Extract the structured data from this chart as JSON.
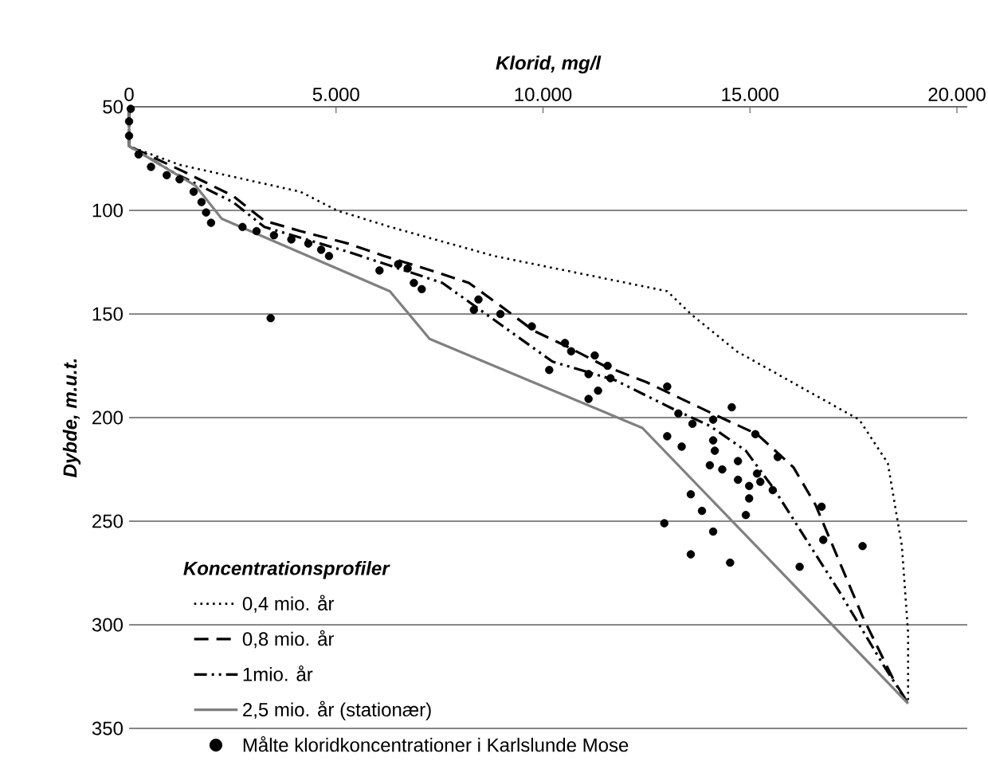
{
  "chart_data": {
    "type": "line",
    "xlabel": "Klorid, mg/l",
    "ylabel": "Dybde, m.u.t.",
    "legend_title": "Koncentrationsprofiler",
    "xlim": [
      0,
      20250
    ],
    "ylim": [
      350,
      50
    ],
    "xticks": [
      {
        "value": 0,
        "label": "0"
      },
      {
        "value": 5000,
        "label": "5.000"
      },
      {
        "value": 10000,
        "label": "10.000"
      },
      {
        "value": 15000,
        "label": "15.000"
      },
      {
        "value": 20000,
        "label": "20.000"
      }
    ],
    "yticks": [
      50,
      100,
      150,
      200,
      250,
      300,
      350
    ],
    "grid": "y",
    "legend": "bottom left",
    "series": [
      {
        "name": "0,4 mio. år",
        "color": "#000000",
        "line_style": "dotted",
        "x": [
          0,
          0,
          1220,
          4140,
          5020,
          6310,
          8820,
          12020,
          13000,
          13570,
          14680,
          16200,
          17640,
          18330,
          18670,
          18820,
          18820
        ],
        "values": [
          50,
          69,
          78,
          91,
          100,
          108,
          122,
          135,
          139,
          150,
          168,
          185,
          201,
          222,
          262,
          304,
          338
        ]
      },
      {
        "name": "0,8 mio. år",
        "color": "#000000",
        "line_style": "dashed",
        "x": [
          0,
          0,
          1290,
          2510,
          3270,
          4140,
          5290,
          6160,
          7300,
          8210,
          8970,
          9770,
          10610,
          11480,
          12510,
          13350,
          14300,
          15170,
          16050,
          16580,
          17720,
          18480,
          18820
        ],
        "values": [
          50,
          69,
          81,
          93,
          105,
          110,
          116,
          122,
          129,
          135,
          146,
          158,
          166,
          175,
          183,
          191,
          200,
          208,
          224,
          242,
          296,
          327,
          338
        ]
      },
      {
        "name": "1mio. år",
        "color": "#000000",
        "line_style": "dashdotted",
        "x": [
          0,
          0,
          1100,
          2510,
          3270,
          5290,
          7570,
          8970,
          10230,
          11750,
          13160,
          14030,
          14900,
          15600,
          17190,
          18210,
          18820
        ],
        "values": [
          50,
          69,
          82,
          96,
          108,
          120,
          135,
          155,
          173,
          182,
          196,
          204,
          216,
          235,
          285,
          319,
          338
        ]
      },
      {
        "name": "2,5 mio. år (stationær)",
        "color": "#808080",
        "line_style": "solid",
        "x": [
          0,
          0,
          1600,
          2240,
          6300,
          7260,
          12400,
          18820
        ],
        "values": [
          50,
          69,
          88,
          104,
          139,
          162,
          205,
          338
        ]
      },
      {
        "name": "Målte kloridkoncentrationer i Karlslunde Mose",
        "type": "scatter",
        "color": "#000000",
        "marker": "circle",
        "x": [
          40,
          0,
          0,
          230,
          530,
          910,
          1220,
          1560,
          1750,
          1860,
          1980,
          2740,
          3080,
          3500,
          3920,
          4330,
          4640,
          4830,
          6050,
          6500,
          6730,
          6880,
          7070,
          3420,
          8440,
          8330,
          8970,
          9730,
          10530,
          10680,
          10150,
          11250,
          11560,
          11100,
          11630,
          11330,
          11100,
          13000,
          13270,
          13610,
          14110,
          14560,
          13000,
          13350,
          14110,
          14150,
          14030,
          14330,
          14710,
          14710,
          15130,
          15670,
          15170,
          15250,
          14980,
          15550,
          13570,
          13840,
          14980,
          14900,
          16730,
          12930,
          14110,
          16770,
          17720,
          13570,
          14520,
          16200
        ],
        "values": [
          51,
          57,
          64,
          73,
          79,
          83,
          85,
          91,
          96,
          101,
          106,
          108,
          110,
          112,
          114,
          116,
          119,
          122,
          129,
          126,
          128,
          135,
          138,
          152,
          143,
          148,
          150,
          156,
          164,
          168,
          177,
          170,
          175,
          179,
          181,
          187,
          191,
          185,
          198,
          203,
          201,
          195,
          209,
          214,
          211,
          216,
          223,
          225,
          221,
          230,
          208,
          219,
          227,
          231,
          233,
          235,
          237,
          245,
          239,
          247,
          243,
          251,
          255,
          259,
          262,
          266,
          270,
          272
        ]
      }
    ]
  }
}
